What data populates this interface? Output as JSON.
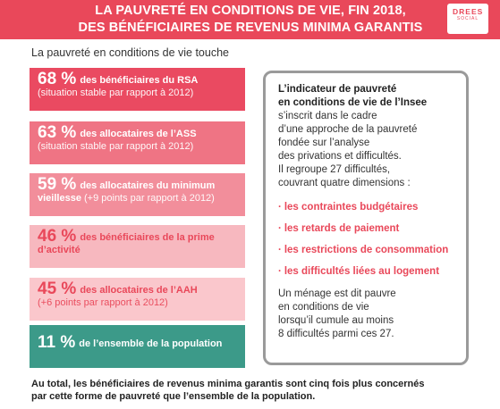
{
  "header": {
    "line1": "LA PAUVRETÉ EN CONDITIONS DE VIE, FIN 2018,",
    "line2": "DES BÉNÉFICIAIRES DE REVENUS MINIMA GARANTIS"
  },
  "logo": {
    "main": "DREES",
    "sub": "SOCIAL"
  },
  "intro": "La pauvreté en conditions de vie touche",
  "stats": [
    {
      "value": "68 %",
      "lead": "des bénéficiaires du RSA",
      "note": "(situation stable par rapport à 2012)"
    },
    {
      "value": "63 %",
      "lead": "des allocataires de l’ASS",
      "note": "(situation stable par rapport à 2012)"
    },
    {
      "value": "59 %",
      "lead": "des allocataires du minimum",
      "lead2": "vieillesse",
      "note": "(+9 points par rapport à 2012)"
    },
    {
      "value": "46 %",
      "lead": "des bénéficiaires de la prime",
      "lead2": "d’activité"
    },
    {
      "value": "45 %",
      "lead": "des allocataires de l’AAH",
      "note": "(+6 points par rapport à 2012)"
    },
    {
      "value": "11 %",
      "lead": "de l’ensemble de la population"
    }
  ],
  "infobox": {
    "title1": "L’indicateur de pauvreté",
    "title2": "en conditions de vie de l’Insee",
    "text": [
      "s’inscrit dans le cadre",
      "d’une approche de la pauvreté",
      "fondée sur l’analyse",
      "des privations et difficultés.",
      "Il regroupe 27 difficultés,",
      "couvrant quatre dimensions :"
    ],
    "dimensions": [
      "les contraintes budgétaires",
      "les retards de paiement",
      "les restrictions de consommation",
      "les difficultés liées au logement"
    ],
    "foot": [
      "Un ménage est dit pauvre",
      "en conditions de vie",
      "lorsqu’il cumule au moins",
      "8 difficultés parmi ces 27."
    ]
  },
  "conclusion": {
    "line1": "Au total, les bénéficiaires de revenus minima garantis sont cinq fois plus concernés",
    "line2": "par cette forme de pauvreté que l’ensemble de la population."
  },
  "colors": {
    "accent": "#e9485a",
    "teal": "#3c9a89",
    "border": "#9a9a9a"
  }
}
